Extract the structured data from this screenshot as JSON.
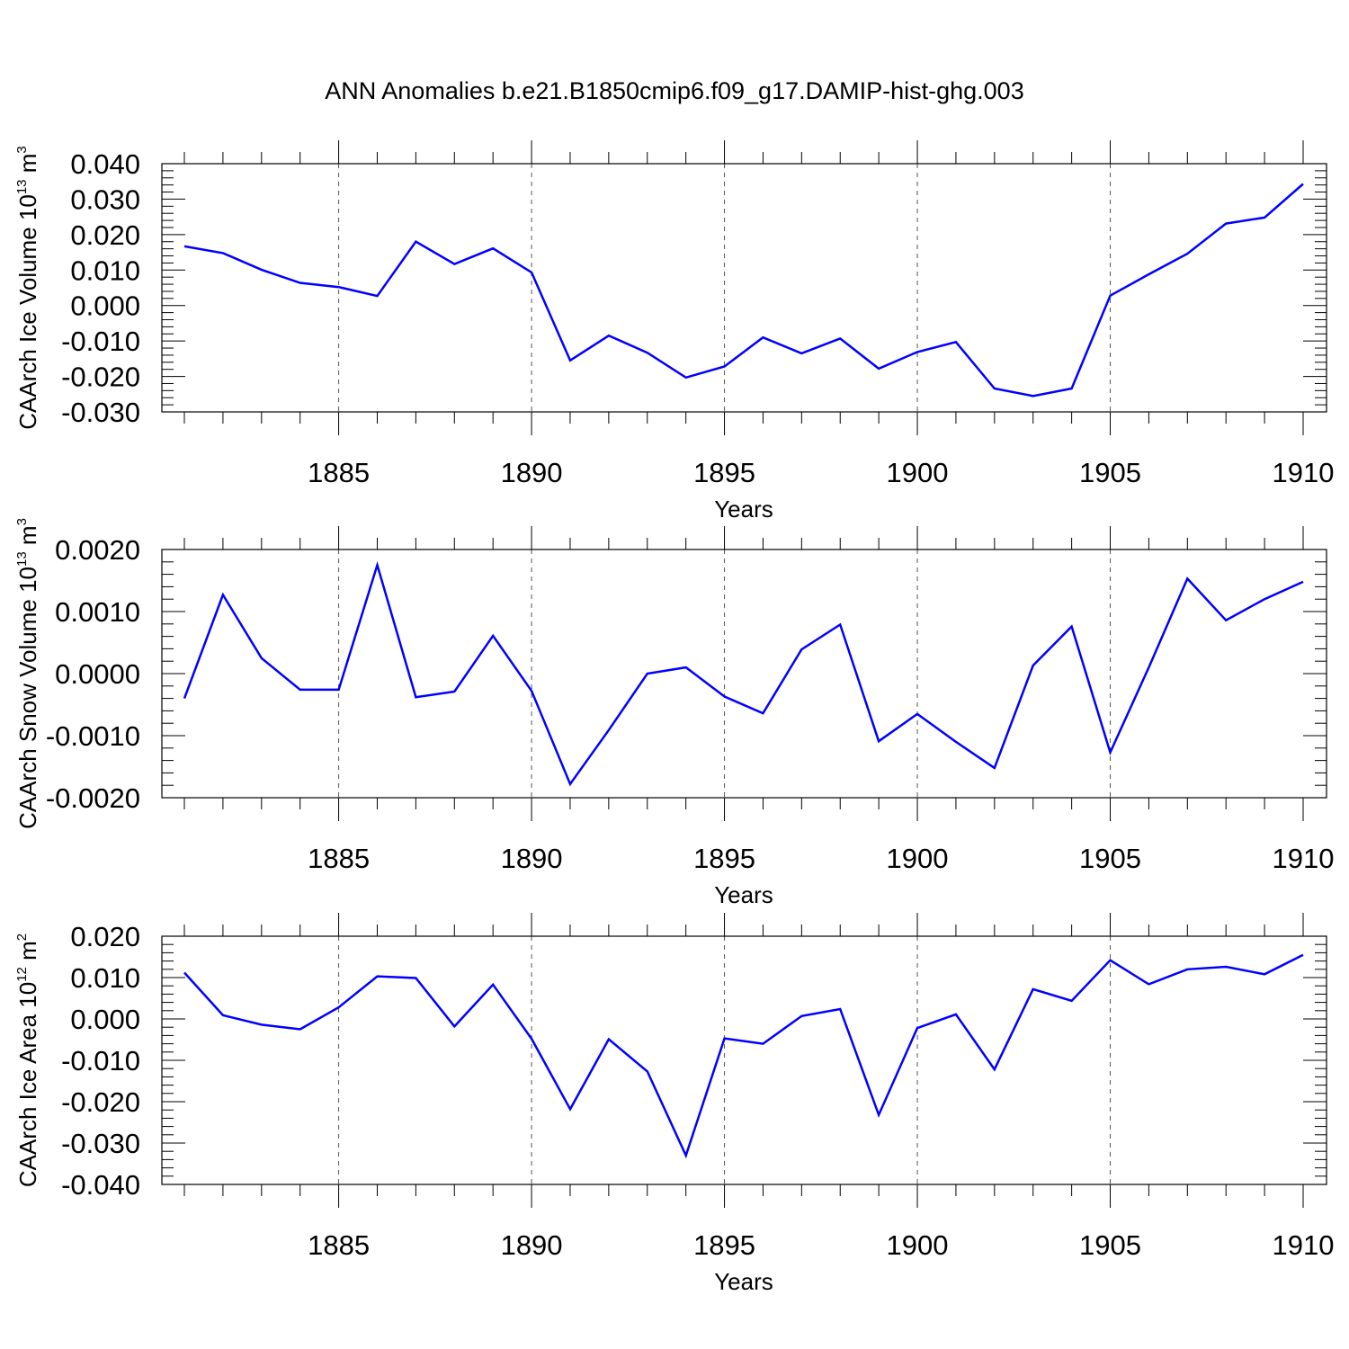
{
  "title": "ANN Anomalies b.e21.B1850cmip6.f09_g17.DAMIP-hist-ghg.003",
  "chart_data": [
    {
      "type": "line",
      "name": "ice-volume",
      "ylabel": "CAArch Ice Volume 10",
      "ylabel_exp": "13",
      "ylabel_unit": " m",
      "ylabel_unit_exp": "3",
      "xlabel": "Years",
      "xlim": [
        1881,
        1910
      ],
      "ylim": [
        -0.03,
        0.04
      ],
      "yticks": [
        -0.03,
        -0.02,
        -0.01,
        0.0,
        0.01,
        0.02,
        0.03,
        0.04
      ],
      "ytick_labels": [
        "-0.030",
        "-0.020",
        "-0.010",
        "0.000",
        "0.010",
        "0.020",
        "0.030",
        "0.040"
      ],
      "xticks": [
        1885,
        1890,
        1895,
        1900,
        1905,
        1910
      ],
      "xtick_labels": [
        "1885",
        "1890",
        "1895",
        "1900",
        "1905",
        "1910"
      ],
      "grid_x": [
        1885,
        1890,
        1895,
        1900,
        1905
      ],
      "color": "#0000ff",
      "x": [
        1881,
        1882,
        1883,
        1884,
        1885,
        1886,
        1887,
        1888,
        1889,
        1890,
        1891,
        1892,
        1893,
        1894,
        1895,
        1896,
        1897,
        1898,
        1899,
        1900,
        1901,
        1902,
        1903,
        1904,
        1905,
        1906,
        1907,
        1908,
        1909,
        1910
      ],
      "values": [
        0.0167,
        0.0148,
        0.0101,
        0.0064,
        0.0052,
        0.0027,
        0.018,
        0.0117,
        0.0161,
        0.0093,
        -0.0155,
        -0.0085,
        -0.0133,
        -0.0203,
        -0.0172,
        -0.009,
        -0.0135,
        -0.0093,
        -0.0178,
        -0.0131,
        -0.0103,
        -0.0234,
        -0.0255,
        -0.0234,
        0.0028,
        0.0088,
        0.0146,
        0.0231,
        0.0248,
        0.0343
      ]
    },
    {
      "type": "line",
      "name": "snow-volume",
      "ylabel": "CAArch Snow Volume 10",
      "ylabel_exp": "13",
      "ylabel_unit": " m",
      "ylabel_unit_exp": "3",
      "xlabel": "Years",
      "xlim": [
        1881,
        1910
      ],
      "ylim": [
        -0.002,
        0.002
      ],
      "yticks": [
        -0.002,
        -0.001,
        0.0,
        0.001,
        0.002
      ],
      "ytick_labels": [
        "-0.0020",
        "-0.0010",
        "0.0000",
        "0.0010",
        "0.0020"
      ],
      "xticks": [
        1885,
        1890,
        1895,
        1900,
        1905,
        1910
      ],
      "xtick_labels": [
        "1885",
        "1890",
        "1895",
        "1900",
        "1905",
        "1910"
      ],
      "grid_x": [
        1885,
        1890,
        1895,
        1900,
        1905
      ],
      "color": "#0000ff",
      "x": [
        1881,
        1882,
        1883,
        1884,
        1885,
        1886,
        1887,
        1888,
        1889,
        1890,
        1891,
        1892,
        1893,
        1894,
        1895,
        1896,
        1897,
        1898,
        1899,
        1900,
        1901,
        1902,
        1903,
        1904,
        1905,
        1906,
        1907,
        1908,
        1909,
        1910
      ],
      "values": [
        -0.0004,
        0.00127,
        0.00025,
        -0.00026,
        -0.00026,
        0.00175,
        -0.00038,
        -0.00029,
        0.00061,
        -0.00028,
        -0.00178,
        -0.00091,
        0.0,
        0.0001,
        -0.00037,
        -0.00064,
        0.00039,
        0.00079,
        -0.00109,
        -0.00065,
        -0.0011,
        -0.00152,
        0.00013,
        0.00076,
        -0.00127,
        0.0001,
        0.00153,
        0.00086,
        0.0012,
        0.00148
      ]
    },
    {
      "type": "line",
      "name": "ice-area",
      "ylabel": "CAArch Ice Area 10",
      "ylabel_exp": "12",
      "ylabel_unit": " m",
      "ylabel_unit_exp": "2",
      "xlabel": "Years",
      "xlim": [
        1881,
        1910
      ],
      "ylim": [
        -0.04,
        0.02
      ],
      "yticks": [
        -0.04,
        -0.03,
        -0.02,
        -0.01,
        0.0,
        0.01,
        0.02
      ],
      "ytick_labels": [
        "-0.040",
        "-0.030",
        "-0.020",
        "-0.010",
        "0.000",
        "0.010",
        "0.020"
      ],
      "xticks": [
        1885,
        1890,
        1895,
        1900,
        1905,
        1910
      ],
      "xtick_labels": [
        "1885",
        "1890",
        "1895",
        "1900",
        "1905",
        "1910"
      ],
      "grid_x": [
        1885,
        1890,
        1895,
        1900,
        1905
      ],
      "color": "#0000ff",
      "x": [
        1881,
        1882,
        1883,
        1884,
        1885,
        1886,
        1887,
        1888,
        1889,
        1890,
        1891,
        1892,
        1893,
        1894,
        1895,
        1896,
        1897,
        1898,
        1899,
        1900,
        1901,
        1902,
        1903,
        1904,
        1905,
        1906,
        1907,
        1908,
        1909,
        1910
      ],
      "values": [
        0.0112,
        0.0009,
        -0.0014,
        -0.0025,
        0.0028,
        0.0103,
        0.0099,
        -0.0018,
        0.0083,
        -0.0048,
        -0.0218,
        -0.0049,
        -0.0127,
        -0.033,
        -0.0047,
        -0.006,
        0.0007,
        0.0024,
        -0.0232,
        -0.0022,
        0.0011,
        -0.0122,
        0.0072,
        0.0044,
        0.0142,
        0.0084,
        0.012,
        0.0126,
        0.0108,
        0.0155
      ]
    }
  ]
}
